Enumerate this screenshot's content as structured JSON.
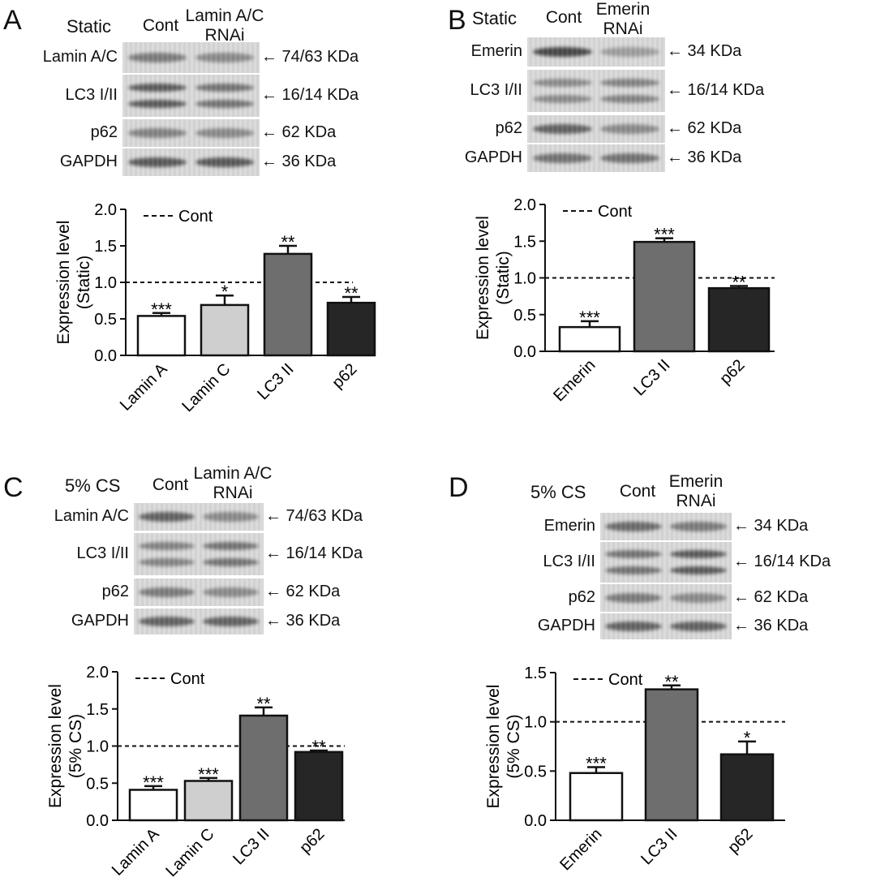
{
  "panels": [
    {
      "id": "A",
      "letter": "A",
      "condition": "Static",
      "lanes": [
        "Cont",
        "Lamin A/C\nRNAi"
      ],
      "blots": [
        {
          "name": "Lamin A/C",
          "size": "74/63 KDa",
          "intensity": [
            0.55,
            0.45
          ]
        },
        {
          "name": "LC3 I/II",
          "size": "16/14 KDa",
          "intensity": [
            0.75,
            0.6
          ]
        },
        {
          "name": "p62",
          "size": "62 KDa",
          "intensity": [
            0.5,
            0.45
          ]
        },
        {
          "name": "GAPDH",
          "size": "36 KDa",
          "intensity": [
            0.75,
            0.75
          ]
        }
      ]
    },
    {
      "id": "B",
      "letter": "B",
      "condition": "Static",
      "lanes": [
        "Cont",
        "Emerin\nRNAi"
      ],
      "blots": [
        {
          "name": "Emerin",
          "size": "34 KDa",
          "intensity": [
            0.85,
            0.3
          ]
        },
        {
          "name": "LC3 I/II",
          "size": "16/14 KDa",
          "intensity": [
            0.45,
            0.5
          ]
        },
        {
          "name": "p62",
          "size": "62 KDa",
          "intensity": [
            0.7,
            0.45
          ]
        },
        {
          "name": "GAPDH",
          "size": "36 KDa",
          "intensity": [
            0.6,
            0.6
          ]
        }
      ]
    },
    {
      "id": "C",
      "letter": "C",
      "condition": "5% CS",
      "lanes": [
        "Cont",
        "Lamin A/C\nRNAi"
      ],
      "blots": [
        {
          "name": "Lamin A/C",
          "size": "74/63 KDa",
          "intensity": [
            0.7,
            0.45
          ]
        },
        {
          "name": "LC3 I/II",
          "size": "16/14 KDa",
          "intensity": [
            0.5,
            0.6
          ]
        },
        {
          "name": "p62",
          "size": "62 KDa",
          "intensity": [
            0.55,
            0.45
          ]
        },
        {
          "name": "GAPDH",
          "size": "36 KDa",
          "intensity": [
            0.7,
            0.7
          ]
        }
      ]
    },
    {
      "id": "D",
      "letter": "D",
      "condition": "5% CS",
      "lanes": [
        "Cont",
        "Emerin\nRNAi"
      ],
      "blots": [
        {
          "name": "Emerin",
          "size": "34 KDa",
          "intensity": [
            0.65,
            0.55
          ]
        },
        {
          "name": "LC3 I/II",
          "size": "16/14 KDa",
          "intensity": [
            0.6,
            0.75
          ]
        },
        {
          "name": "p62",
          "size": "62 KDa",
          "intensity": [
            0.55,
            0.45
          ]
        },
        {
          "name": "GAPDH",
          "size": "36 KDa",
          "intensity": [
            0.7,
            0.7
          ]
        }
      ]
    }
  ],
  "chart_data": [
    {
      "panel": "A",
      "type": "bar",
      "categories": [
        "Lamin A",
        "Lamin C",
        "LC3 II",
        "p62"
      ],
      "values": [
        0.54,
        0.69,
        1.39,
        0.72
      ],
      "errors": [
        0.04,
        0.13,
        0.11,
        0.08
      ],
      "significance": [
        "***",
        "*",
        "**",
        "**"
      ],
      "colors": [
        "#ffffff",
        "#cfcfcf",
        "#6e6e6e",
        "#262626"
      ],
      "ylabel": "Expression level\n(Static)",
      "ylim": [
        0,
        2.0
      ],
      "yticks": [
        "0.0",
        "0.5",
        "1.0",
        "1.5",
        "2.0"
      ],
      "reference_line": 1.0,
      "legend": "Cont"
    },
    {
      "panel": "B",
      "type": "bar",
      "categories": [
        "Emerin",
        "LC3 II",
        "p62"
      ],
      "values": [
        0.33,
        1.49,
        0.86
      ],
      "errors": [
        0.08,
        0.05,
        0.03
      ],
      "significance": [
        "***",
        "***",
        "**"
      ],
      "colors": [
        "#ffffff",
        "#6e6e6e",
        "#262626"
      ],
      "ylabel": "Expression level\n(Static)",
      "ylim": [
        0,
        2.0
      ],
      "yticks": [
        "0.0",
        "0.5",
        "1.0",
        "1.5",
        "2.0"
      ],
      "reference_line": 1.0,
      "legend": "Cont"
    },
    {
      "panel": "C",
      "type": "bar",
      "categories": [
        "Lamin A",
        "Lamin C",
        "LC3 II",
        "p62"
      ],
      "values": [
        0.41,
        0.53,
        1.41,
        0.92
      ],
      "errors": [
        0.05,
        0.04,
        0.11,
        0.02
      ],
      "significance": [
        "***",
        "***",
        "**",
        "**"
      ],
      "colors": [
        "#ffffff",
        "#cfcfcf",
        "#6e6e6e",
        "#262626"
      ],
      "ylabel": "Expression level\n(5% CS)",
      "ylim": [
        0,
        2.0
      ],
      "yticks": [
        "0.0",
        "0.5",
        "1.0",
        "1.5",
        "2.0"
      ],
      "reference_line": 1.0,
      "legend": "Cont"
    },
    {
      "panel": "D",
      "type": "bar",
      "categories": [
        "Emerin",
        "LC3 II",
        "p62"
      ],
      "values": [
        0.48,
        1.33,
        0.67
      ],
      "errors": [
        0.06,
        0.04,
        0.13
      ],
      "significance": [
        "***",
        "**",
        "*"
      ],
      "colors": [
        "#ffffff",
        "#6e6e6e",
        "#262626"
      ],
      "ylabel": "Expression level\n(5% CS)",
      "ylim": [
        0,
        1.5
      ],
      "yticks": [
        "0.0",
        "0.5",
        "1.0",
        "1.5"
      ],
      "reference_line": 1.0,
      "legend": "Cont"
    }
  ]
}
